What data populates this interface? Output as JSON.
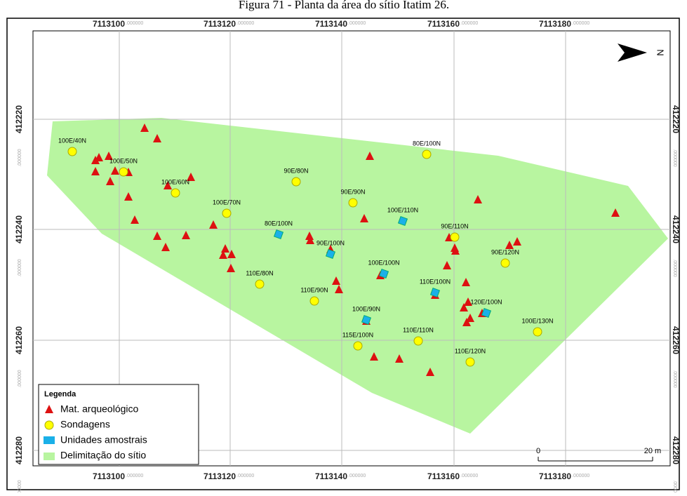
{
  "title": "Figura 71 - Planta da área do sítio Itatim 26.",
  "map": {
    "x_ticks": [
      {
        "label": "7113100",
        "decimals": ".000000"
      },
      {
        "label": "7113120",
        "decimals": ".000000"
      },
      {
        "label": "7113140",
        "decimals": ".000000"
      },
      {
        "label": "7113160",
        "decimals": ".000000"
      },
      {
        "label": "7113180",
        "decimals": ".000000"
      }
    ],
    "y_ticks": [
      {
        "label": "412220",
        "decimals": ".000000"
      },
      {
        "label": "412240",
        "decimals": ".000000"
      },
      {
        "label": "412260",
        "decimals": ".000000"
      },
      {
        "label": "412280",
        "decimals": ".000000"
      }
    ],
    "site_labels": [
      "100E/40N",
      "100E/50N",
      "100E/60N",
      "100E/70N",
      "90E/80N",
      "80E/100N",
      "90E/90N",
      "90E/110N",
      "90E/120N",
      "110E/80N",
      "110E/90N",
      "110E/100N",
      "120E/100N",
      "100E/130N",
      "110E/110N",
      "110E/120N",
      "115E/100N",
      "100E/90N",
      "100E/100N",
      "90E/100N",
      "80E/100N",
      "100E/110N"
    ],
    "legend": {
      "title": "Legenda",
      "items": [
        "Mat. arqueológico",
        "Sondagens",
        "Unidades amostrais",
        "Delimitação do  sítio"
      ]
    },
    "scale": {
      "start": "0",
      "end": "20 m"
    },
    "north": "N"
  }
}
